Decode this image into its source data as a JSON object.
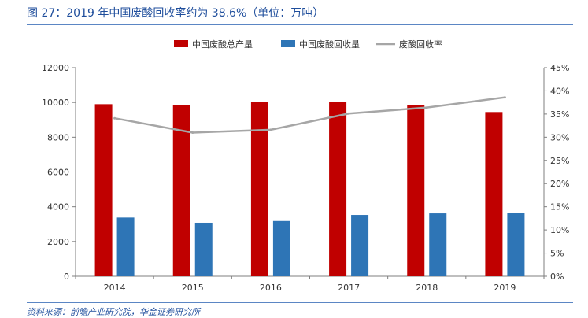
{
  "header": {
    "title": "图 27：2019 年中国废酸回收率约为 38.6%（单位：万吨）"
  },
  "footer": {
    "source": "资料来源：前瞻产业研究院，华金证券研究所"
  },
  "colors": {
    "total": "#c00000",
    "recovered": "#2e75b6",
    "rate": "#a6a6a6",
    "title": "#1f4e9c"
  },
  "chart_data": {
    "type": "bar",
    "categories": [
      "2014",
      "2015",
      "2016",
      "2017",
      "2018",
      "2019"
    ],
    "series": [
      {
        "name": "中国废酸总产量",
        "type": "bar",
        "axis": "left",
        "values": [
          9900,
          9850,
          10050,
          10050,
          9850,
          9450
        ]
      },
      {
        "name": "中国废酸回收量",
        "type": "bar",
        "axis": "left",
        "values": [
          3380,
          3080,
          3180,
          3530,
          3620,
          3660
        ]
      },
      {
        "name": "废酸回收率",
        "type": "line",
        "axis": "right",
        "values": [
          34.1,
          31.0,
          31.6,
          35.1,
          36.4,
          38.6
        ]
      }
    ],
    "y_left": {
      "min": 0,
      "max": 12000,
      "ticks": [
        "0",
        "2000",
        "4000",
        "6000",
        "8000",
        "10000",
        "12000"
      ]
    },
    "y_right": {
      "min": 0,
      "max": 45,
      "ticks": [
        "0%",
        "5%",
        "10%",
        "15%",
        "20%",
        "25%",
        "30%",
        "35%",
        "40%",
        "45%"
      ]
    },
    "legend_position": "top",
    "grid": false
  }
}
